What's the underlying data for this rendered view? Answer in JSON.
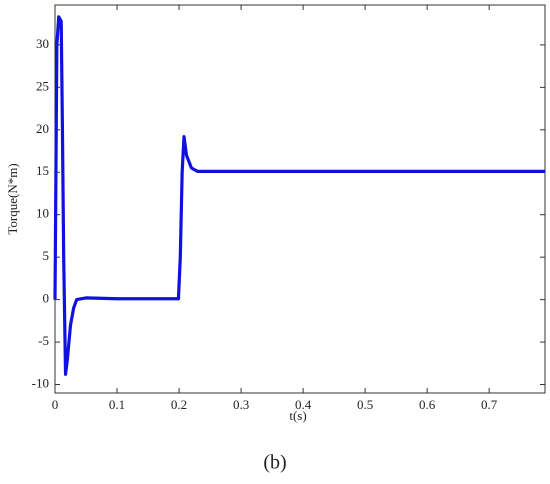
{
  "chart_data": {
    "type": "line",
    "caption": "(b)",
    "xlabel": "t(s)",
    "ylabel": "Torque(N*m)",
    "x": [
      0,
      0.003,
      0.006,
      0.01,
      0.012,
      0.014,
      0.017,
      0.02,
      0.025,
      0.03,
      0.035,
      0.05,
      0.1,
      0.15,
      0.199,
      0.202,
      0.205,
      0.208,
      0.212,
      0.22,
      0.23,
      0.4,
      0.6,
      0.79
    ],
    "values": [
      0,
      30,
      33.3,
      32.8,
      20,
      5,
      -8.8,
      -7,
      -3,
      -1,
      0,
      0.2,
      0.1,
      0.1,
      0.1,
      5,
      15,
      19.2,
      17,
      15.5,
      15.1,
      15.1,
      15.1,
      15.1
    ],
    "color": "#1010e0",
    "xlim": [
      0,
      0.79
    ],
    "ylim": [
      -11,
      34.7
    ],
    "xticks": [
      0,
      0.1,
      0.2,
      0.3,
      0.4,
      0.5,
      0.6,
      0.7
    ],
    "yticks": [
      -10,
      -5,
      0,
      5,
      10,
      15,
      20,
      25,
      30
    ],
    "grid": false
  }
}
